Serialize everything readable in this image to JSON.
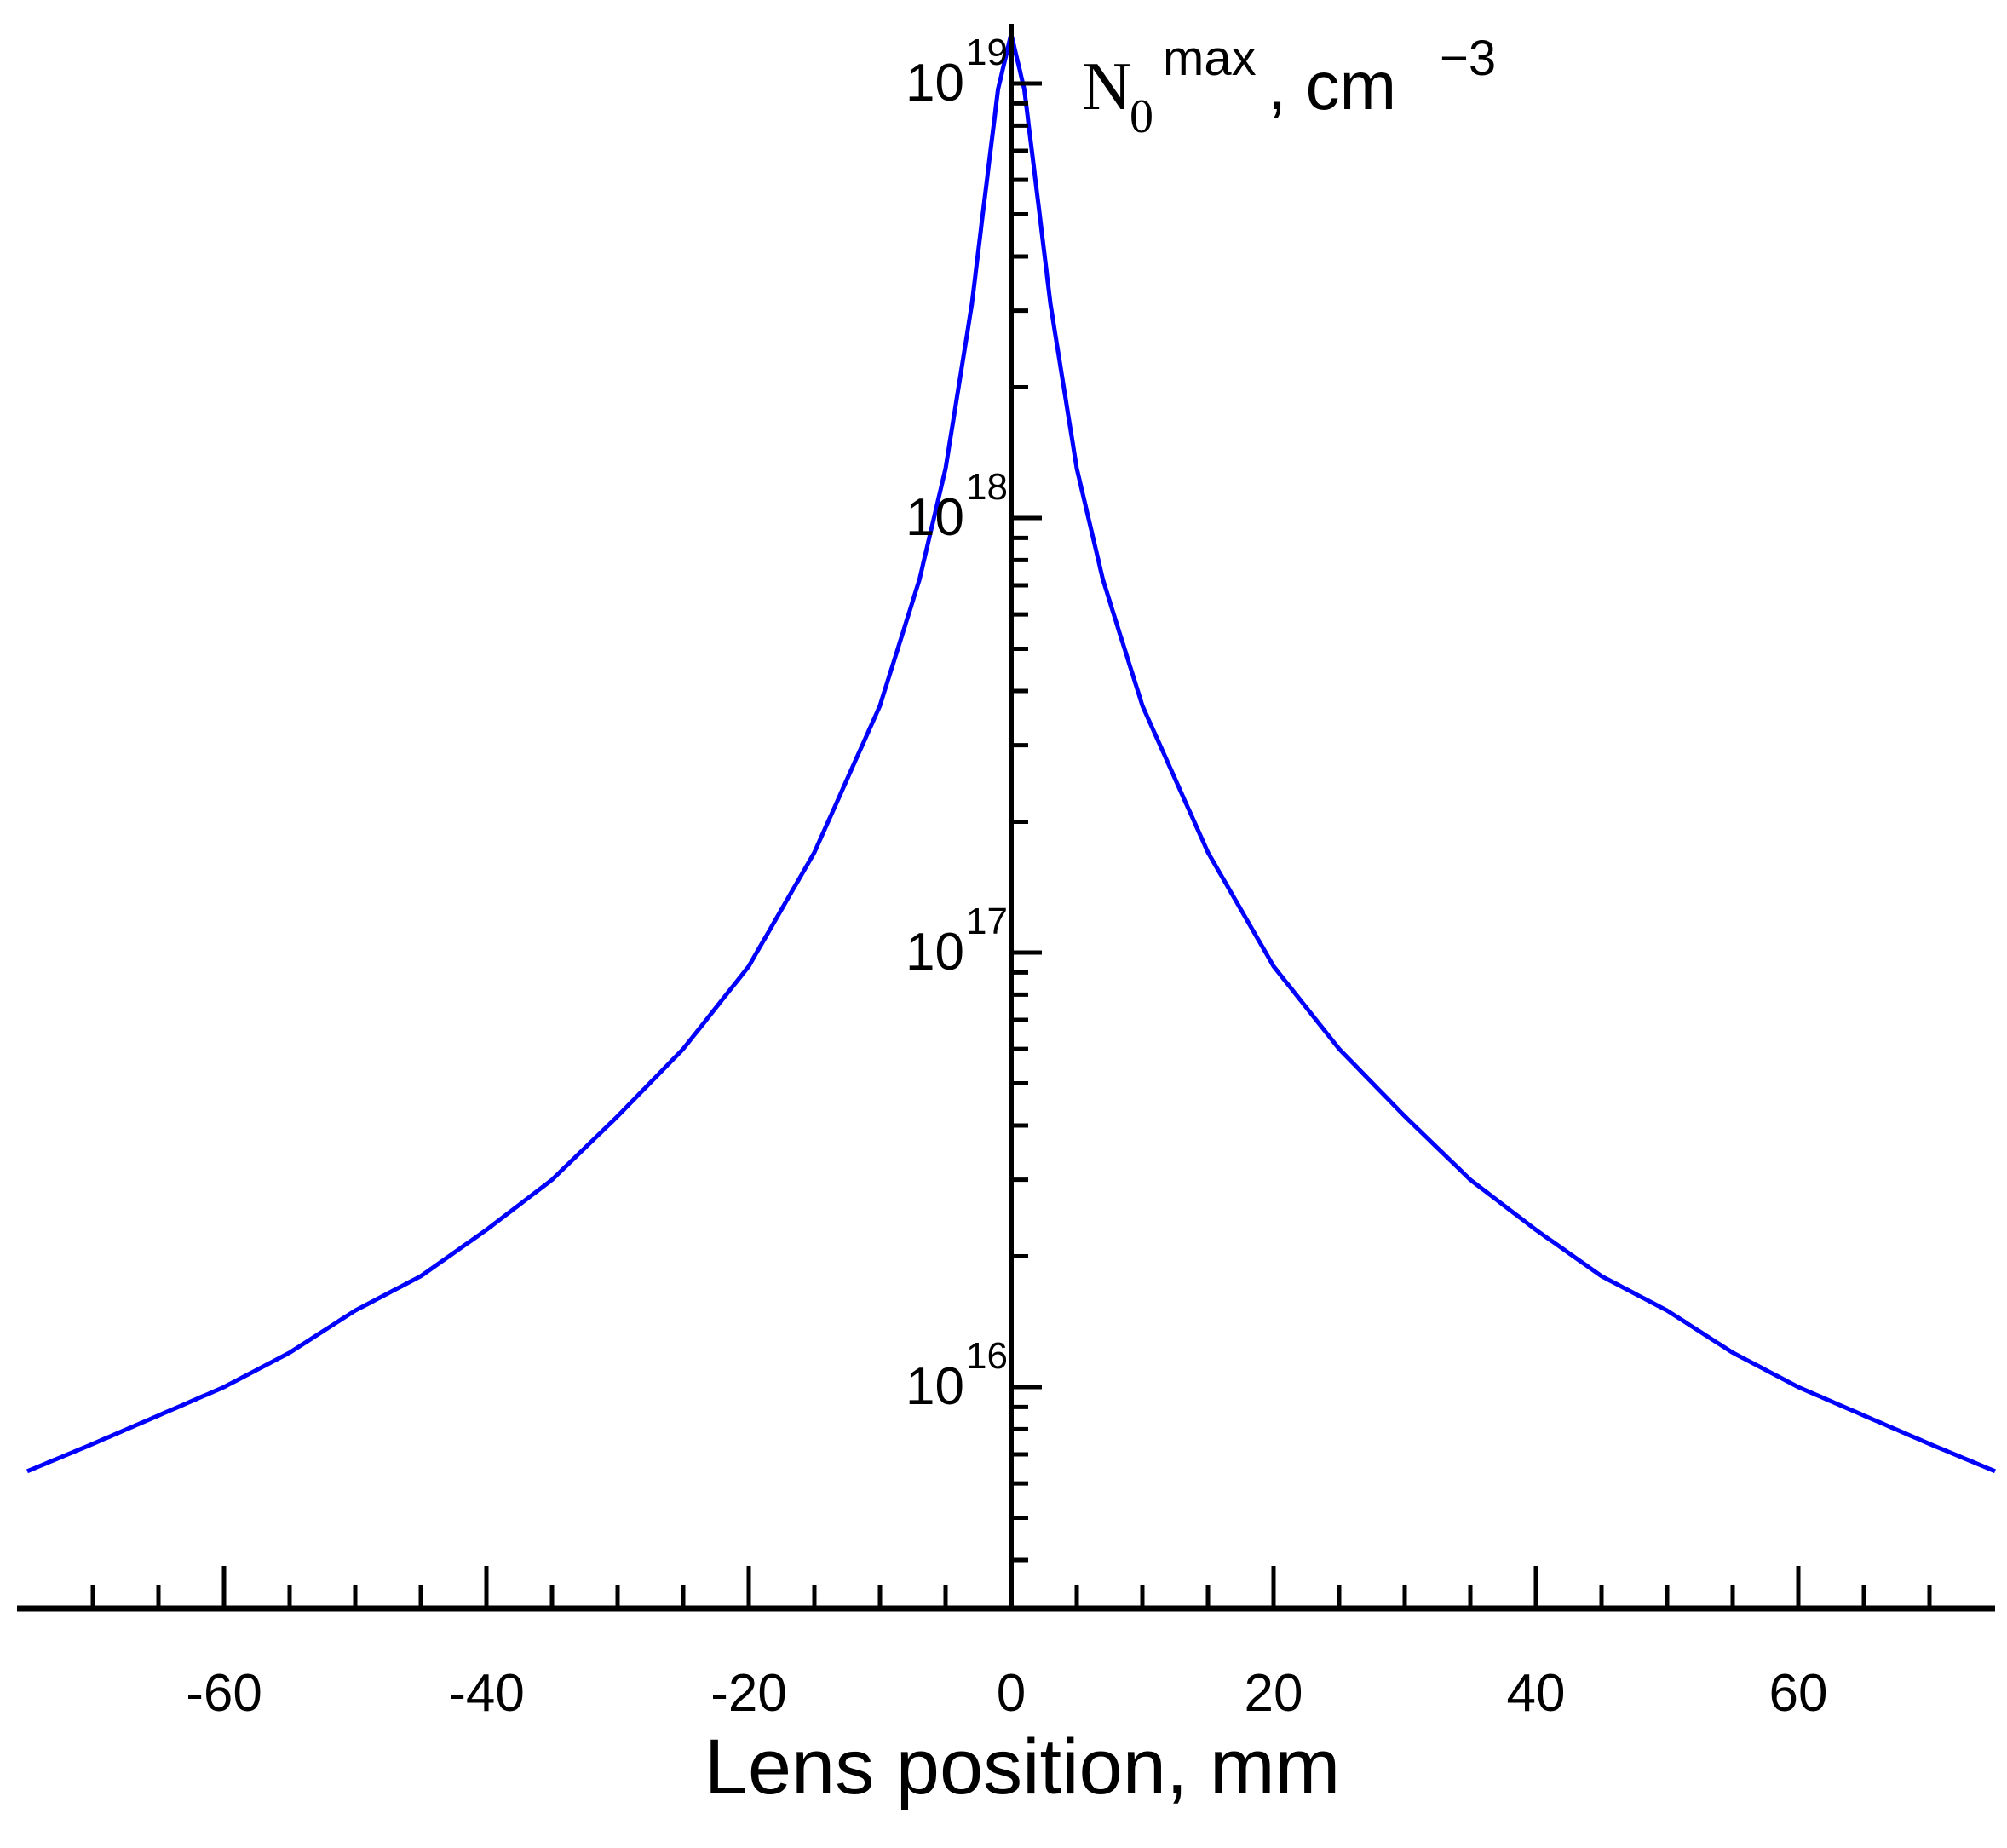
{
  "chart_data": {
    "type": "line",
    "title": "",
    "xlabel": "Lens position, mm",
    "ylabel": {
      "main": "N",
      "sub": "0",
      "sup": "max",
      "unit": ", cm",
      "unit_sup": "−3"
    },
    "xscale": "linear",
    "yscale": "log",
    "xlim": [
      -75,
      75
    ],
    "ylim": [
      3500000000000000.0,
      1.6e+19
    ],
    "x_ticks": [
      -60,
      -40,
      -20,
      0,
      20,
      40,
      60
    ],
    "x_tick_labels": [
      "-60",
      "-40",
      "-20",
      "0",
      "20",
      "40",
      "60"
    ],
    "y_ticks": [
      {
        "value": 1e+16,
        "base": "10",
        "exp": "16"
      },
      {
        "value": 1e+17,
        "base": "10",
        "exp": "17"
      },
      {
        "value": 1e+18,
        "base": "10",
        "exp": "18"
      },
      {
        "value": 1e+19,
        "base": "10",
        "exp": "19"
      }
    ],
    "grid": false,
    "series": [
      {
        "name": "N0max",
        "color": "#0000ff",
        "x": [
          -75,
          -70,
          -65,
          -60,
          -55,
          -50,
          -45,
          -40,
          -35,
          -30,
          -25,
          -20,
          -15,
          -10,
          -7,
          -5,
          -3,
          -2,
          -1,
          0,
          1,
          2,
          3,
          5,
          7,
          10,
          15,
          20,
          25,
          30,
          35,
          40,
          45,
          50,
          55,
          60,
          65,
          70,
          75
        ],
        "y": [
          6400000000000000.0,
          7400000000000000.0,
          8600000000000000.0,
          1e+16,
          1.2e+16,
          1.5e+16,
          1.8e+16,
          2.3e+16,
          3e+16,
          4.2e+16,
          6e+16,
          9.3e+16,
          1.7e+17,
          3.7e+17,
          7.2e+17,
          1.3e+18,
          3.1e+18,
          5.5e+18,
          9.7e+18,
          1.3e+19,
          9.7e+18,
          5.5e+18,
          3.1e+18,
          1.3e+18,
          7.2e+17,
          3.7e+17,
          1.7e+17,
          9.3e+16,
          6e+16,
          4.2e+16,
          3e+16,
          2.3e+16,
          1.8e+16,
          1.5e+16,
          1.2e+16,
          1e+16,
          8600000000000000.0,
          7400000000000000.0,
          6400000000000000.0
        ]
      }
    ]
  }
}
